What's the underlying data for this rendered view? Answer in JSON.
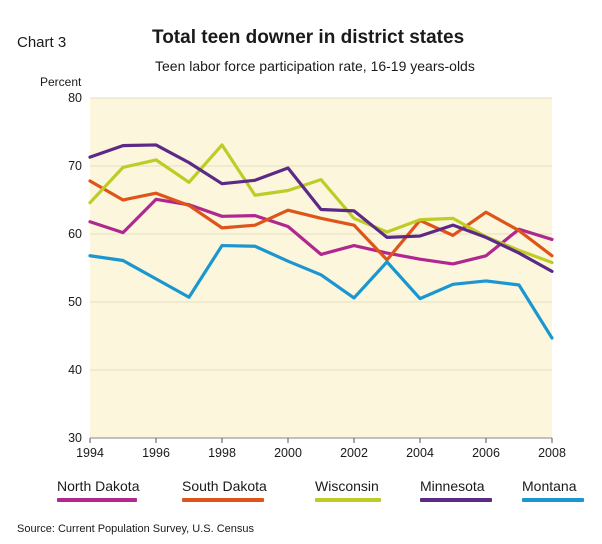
{
  "header": {
    "chart_label": "Chart 3",
    "title": "Total teen downer in district states",
    "subtitle": "Teen labor force participation rate, 16-19 years-olds"
  },
  "source": "Source: Current Population Survey, U.S. Census",
  "chart_data": {
    "type": "line",
    "title": "Total teen downer in district states",
    "subtitle": "Teen labor force participation rate, 16-19 years-olds",
    "ylabel": "Percent",
    "xlabel": "",
    "x": [
      1994,
      1995,
      1996,
      1997,
      1998,
      1999,
      2000,
      2001,
      2002,
      2003,
      2004,
      2005,
      2006,
      2007,
      2008
    ],
    "x_ticks": [
      1994,
      1996,
      1998,
      2000,
      2002,
      2004,
      2006,
      2008
    ],
    "y_ticks": [
      30,
      40,
      50,
      60,
      70,
      80
    ],
    "ylim": [
      30,
      80
    ],
    "xlim": [
      1994,
      2008
    ],
    "grid": "horizontal",
    "legend_position": "bottom",
    "background_color": "#fbf6dc",
    "series": [
      {
        "name": "North Dakota",
        "color": "#b0278f",
        "values": [
          61.8,
          60.2,
          65.1,
          64.3,
          62.6,
          62.7,
          61.1,
          57.0,
          58.3,
          57.2,
          56.3,
          55.6,
          56.8,
          60.7,
          59.2
        ]
      },
      {
        "name": "South Dakota",
        "color": "#de5419",
        "values": [
          67.8,
          65.0,
          66.0,
          64.2,
          60.9,
          61.3,
          63.5,
          62.3,
          61.3,
          56.2,
          62.0,
          59.8,
          63.2,
          60.5,
          56.8
        ]
      },
      {
        "name": "Wisconsin",
        "color": "#bfcc25",
        "values": [
          64.6,
          69.8,
          70.9,
          67.6,
          73.1,
          65.7,
          66.4,
          68.0,
          62.3,
          60.3,
          62.1,
          62.3,
          59.6,
          57.6,
          55.8
        ]
      },
      {
        "name": "Minnesota",
        "color": "#5c2a86",
        "values": [
          71.3,
          73.0,
          73.1,
          70.5,
          67.4,
          67.9,
          69.7,
          63.6,
          63.4,
          59.5,
          59.7,
          61.3,
          59.5,
          57.2,
          54.5
        ]
      },
      {
        "name": "Montana",
        "color": "#1a96d1",
        "values": [
          56.8,
          56.1,
          53.4,
          50.7,
          58.3,
          58.2,
          56.0,
          54.0,
          50.6,
          55.9,
          50.5,
          52.6,
          53.1,
          52.5,
          44.7
        ]
      }
    ]
  }
}
